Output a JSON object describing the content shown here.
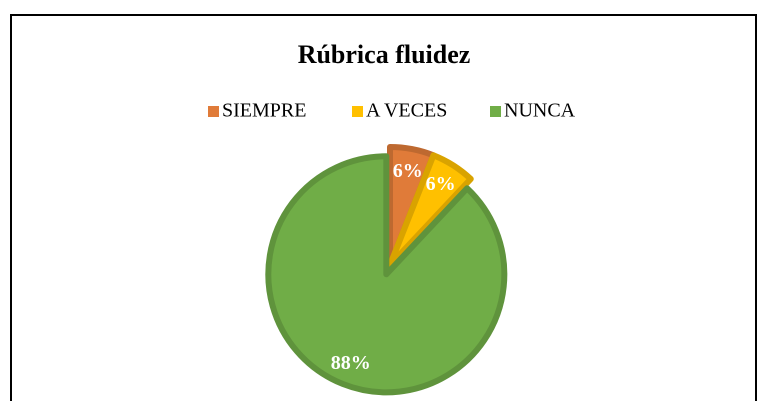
{
  "chart_data": {
    "type": "pie",
    "title": "Rúbrica fluidez",
    "categories": [
      "SIEMPRE",
      "A VECES",
      "NUNCA"
    ],
    "values": [
      6,
      6,
      88
    ],
    "value_labels": [
      "6%",
      "6%",
      "88%"
    ],
    "colors": [
      "#e07b39",
      "#ffc000",
      "#70ad47"
    ],
    "legend": "top"
  }
}
